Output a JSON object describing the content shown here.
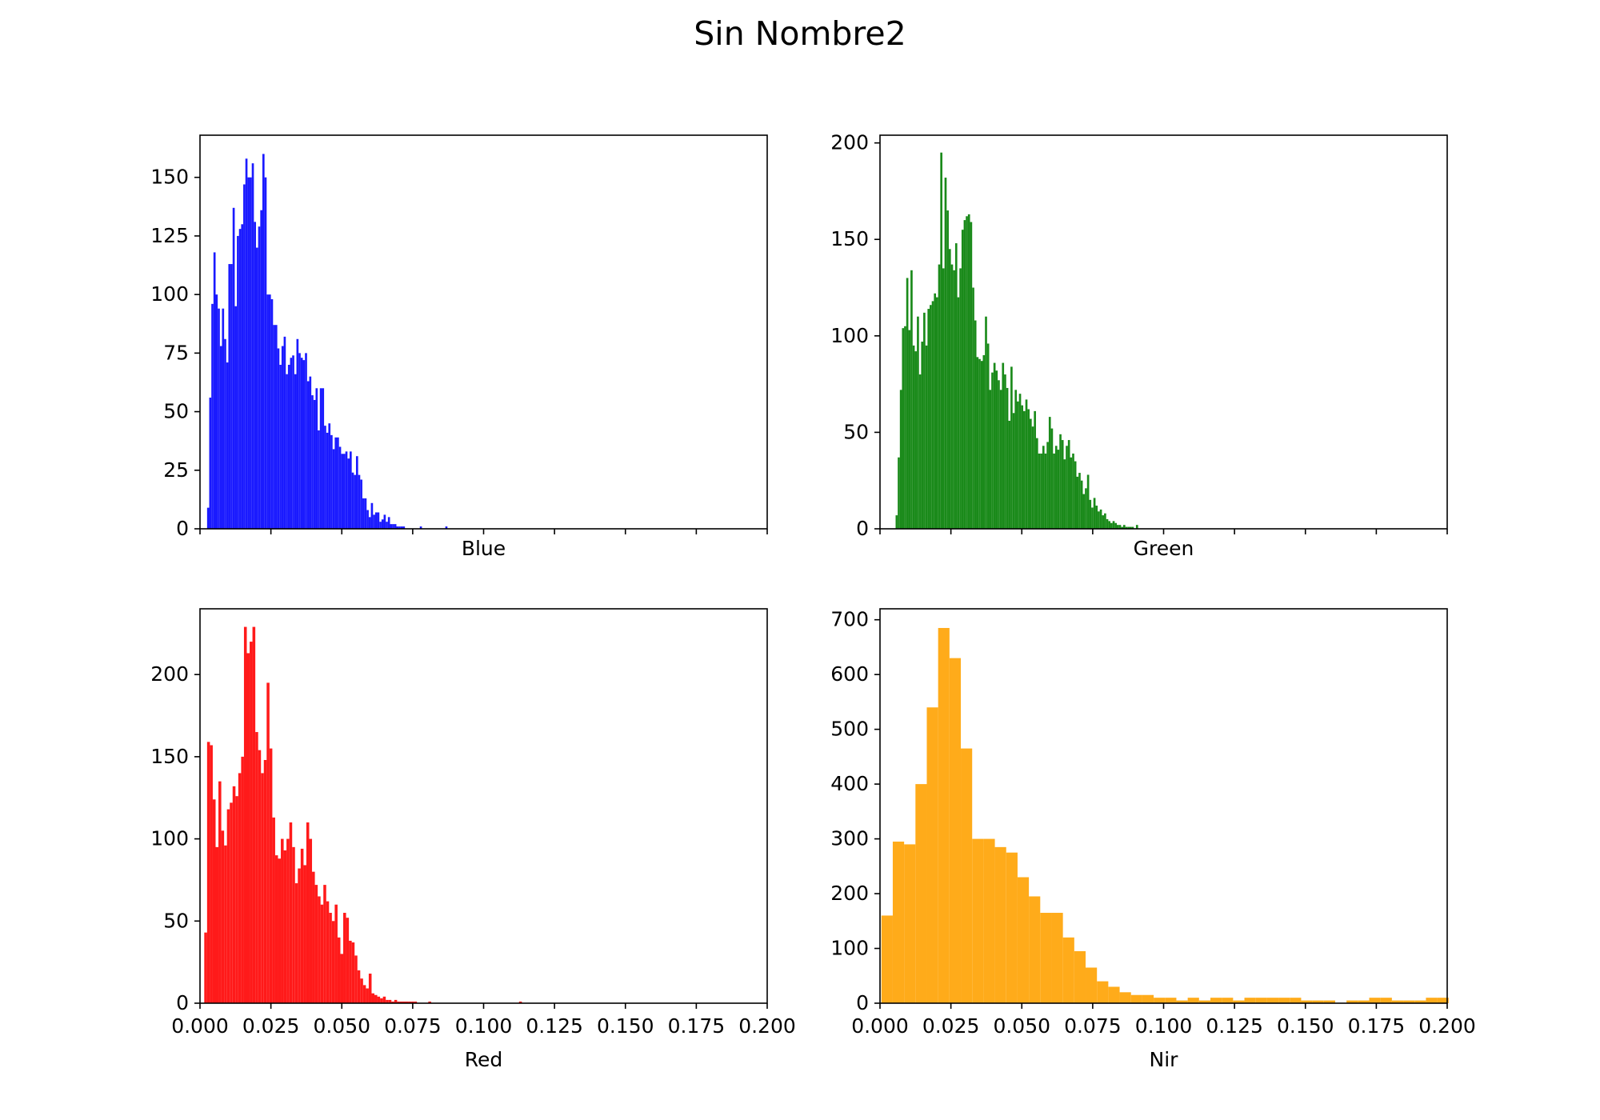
{
  "figure_title": "Sin Nombre2",
  "chart_data": [
    {
      "type": "bar",
      "variant": "histogram",
      "title": "",
      "xlabel": "Blue",
      "ylabel": "",
      "xlim": [
        0,
        0.2
      ],
      "ylim": [
        0,
        168
      ],
      "x_ticks": [
        0,
        0.025,
        0.05,
        0.075,
        0.1,
        0.125,
        0.15,
        0.175,
        0.2
      ],
      "x_tick_labels_visible": false,
      "y_ticks": [
        0,
        25,
        50,
        75,
        100,
        125,
        150
      ],
      "y_tick_labels": [
        "0",
        "25",
        "50",
        "75",
        "100",
        "125",
        "150"
      ],
      "color": "#1a1aff",
      "series": [
        {
          "bin_edges": [
            0.0025,
            0.00325,
            0.004,
            0.00475,
            0.0055,
            0.00625,
            0.007,
            0.00775,
            0.0085,
            0.00925,
            0.01,
            0.01075,
            0.0115,
            0.01225,
            0.013,
            0.01375,
            0.0145,
            0.01525,
            0.016,
            0.01675,
            0.0175,
            0.01825,
            0.019,
            0.01975,
            0.0205,
            0.02125,
            0.022,
            0.02275,
            0.0235,
            0.02425,
            0.025,
            0.02575,
            0.0265,
            0.02725,
            0.028,
            0.02875,
            0.0295,
            0.03025,
            0.031,
            0.03175,
            0.0325,
            0.03325,
            0.034,
            0.03475,
            0.0355,
            0.03625,
            0.037,
            0.03775,
            0.0385,
            0.03925,
            0.04,
            0.04075,
            0.0415,
            0.04225,
            0.043,
            0.04375,
            0.0445,
            0.04525,
            0.046,
            0.04675,
            0.0475,
            0.04825,
            0.049,
            0.04975,
            0.0505,
            0.05125,
            0.052,
            0.05275,
            0.0535,
            0.05425,
            0.055,
            0.05575,
            0.0565,
            0.05725,
            0.058,
            0.05875,
            0.0595,
            0.06025,
            0.061,
            0.06175,
            0.0625,
            0.06325,
            0.064,
            0.06475,
            0.0655,
            0.06625,
            0.067,
            0.06775,
            0.0685,
            0.06925,
            0.07,
            0.07075,
            0.0715,
            0.07225,
            0.073,
            0.07375,
            0.0745,
            0.07525,
            0.076,
            0.07675,
            0.0775,
            0.07825,
            0.079,
            0.07975,
            0.0805,
            0.08125,
            0.082,
            0.08275,
            0.0835,
            0.08425,
            0.085,
            0.08575,
            0.0865,
            0.08725,
            0.088,
            0.08875,
            0.0895,
            0.09025,
            0.091,
            0.09175,
            0.0925
          ],
          "counts": [
            9,
            56,
            96,
            118,
            100,
            94,
            78,
            94,
            81,
            71,
            113,
            113,
            137,
            95,
            125,
            128,
            130,
            147,
            158,
            150,
            150,
            156,
            131,
            120,
            129,
            136,
            160,
            150,
            100,
            100,
            98,
            87,
            87,
            77,
            70,
            78,
            82,
            66,
            70,
            73,
            74,
            66,
            81,
            75,
            73,
            72,
            75,
            63,
            65,
            57,
            55,
            60,
            42,
            60,
            60,
            44,
            41,
            45,
            40,
            34,
            39,
            39,
            35,
            32,
            32,
            33,
            30,
            33,
            24,
            23,
            31,
            23,
            21,
            13,
            13,
            8,
            5,
            11,
            6,
            7,
            7,
            3,
            4,
            6,
            3,
            5,
            2,
            2,
            2,
            1,
            1,
            1,
            1,
            0,
            0,
            0,
            0,
            0,
            0,
            0,
            1,
            0,
            0,
            0,
            0,
            0,
            0,
            0,
            0,
            0,
            0,
            0,
            1,
            0,
            0,
            0,
            0,
            0,
            0,
            0
          ]
        }
      ]
    },
    {
      "type": "bar",
      "variant": "histogram",
      "title": "",
      "xlabel": "Green",
      "ylabel": "",
      "xlim": [
        0,
        0.2
      ],
      "ylim": [
        0,
        204
      ],
      "x_ticks": [
        0,
        0.025,
        0.05,
        0.075,
        0.1,
        0.125,
        0.15,
        0.175,
        0.2
      ],
      "x_tick_labels_visible": false,
      "y_ticks": [
        0,
        50,
        100,
        150,
        200
      ],
      "y_tick_labels": [
        "0",
        "50",
        "100",
        "150",
        "200"
      ],
      "color": "#1a8a1a",
      "series": [
        {
          "bin_edges": [
            0.0055,
            0.00625,
            0.007,
            0.00775,
            0.0085,
            0.00925,
            0.01,
            0.01075,
            0.0115,
            0.01225,
            0.013,
            0.01375,
            0.0145,
            0.01525,
            0.016,
            0.01675,
            0.0175,
            0.01825,
            0.019,
            0.01975,
            0.0205,
            0.02125,
            0.022,
            0.02275,
            0.0235,
            0.02425,
            0.025,
            0.02575,
            0.0265,
            0.02725,
            0.028,
            0.02875,
            0.0295,
            0.03025,
            0.031,
            0.03175,
            0.0325,
            0.03325,
            0.034,
            0.03475,
            0.0355,
            0.03625,
            0.037,
            0.03775,
            0.0385,
            0.03925,
            0.04,
            0.04075,
            0.0415,
            0.04225,
            0.043,
            0.04375,
            0.0445,
            0.04525,
            0.046,
            0.04675,
            0.0475,
            0.04825,
            0.049,
            0.04975,
            0.0505,
            0.05125,
            0.052,
            0.05275,
            0.0535,
            0.05425,
            0.055,
            0.05575,
            0.0565,
            0.05725,
            0.058,
            0.05875,
            0.0595,
            0.06025,
            0.061,
            0.06175,
            0.0625,
            0.06325,
            0.064,
            0.06475,
            0.0655,
            0.06625,
            0.067,
            0.06775,
            0.0685,
            0.06925,
            0.07,
            0.07075,
            0.0715,
            0.07225,
            0.073,
            0.07375,
            0.0745,
            0.07525,
            0.076,
            0.07675,
            0.0775,
            0.07825,
            0.079,
            0.07975,
            0.0805,
            0.08125,
            0.082,
            0.08275,
            0.0835,
            0.08425,
            0.085,
            0.08575,
            0.0865,
            0.08725,
            0.088,
            0.08875,
            0.0895,
            0.09025,
            0.091,
            0.09175,
            0.0925,
            0.09325,
            0.094,
            0.09475,
            0.0955
          ],
          "counts": [
            7,
            37,
            72,
            104,
            105,
            130,
            103,
            134,
            95,
            92,
            110,
            80,
            97,
            112,
            95,
            114,
            116,
            118,
            122,
            120,
            137,
            195,
            135,
            182,
            165,
            145,
            137,
            134,
            148,
            120,
            135,
            155,
            160,
            162,
            163,
            159,
            125,
            108,
            89,
            88,
            87,
            90,
            110,
            96,
            72,
            81,
            86,
            82,
            77,
            72,
            86,
            80,
            73,
            56,
            84,
            60,
            72,
            66,
            70,
            64,
            61,
            67,
            62,
            57,
            53,
            61,
            47,
            39,
            39,
            43,
            39,
            45,
            58,
            52,
            39,
            43,
            41,
            49,
            46,
            36,
            43,
            46,
            37,
            39,
            35,
            27,
            29,
            25,
            18,
            21,
            28,
            15,
            11,
            16,
            12,
            9,
            10,
            7,
            8,
            5,
            4,
            3,
            4,
            3,
            2,
            2,
            1,
            2,
            1,
            1,
            1,
            1,
            0,
            2,
            0,
            0,
            0,
            0,
            0,
            0,
            1
          ]
        }
      ]
    },
    {
      "type": "bar",
      "variant": "histogram",
      "title": "",
      "xlabel": "Red",
      "ylabel": "",
      "xlim": [
        0,
        0.2
      ],
      "ylim": [
        0,
        240
      ],
      "x_ticks": [
        0,
        0.025,
        0.05,
        0.075,
        0.1,
        0.125,
        0.15,
        0.175,
        0.2
      ],
      "x_tick_labels": [
        "0.000",
        "0.025",
        "0.050",
        "0.075",
        "0.100",
        "0.125",
        "0.150",
        "0.175",
        "0.200"
      ],
      "x_tick_labels_visible": true,
      "y_ticks": [
        0,
        50,
        100,
        150,
        200
      ],
      "y_tick_labels": [
        "0",
        "50",
        "100",
        "150",
        "200"
      ],
      "color": "#ff1a1a",
      "series": [
        {
          "bin_edges": [
            0.0015,
            0.0025,
            0.0035,
            0.0045,
            0.0055,
            0.0065,
            0.0075,
            0.0085,
            0.0095,
            0.0105,
            0.0115,
            0.0125,
            0.0135,
            0.0145,
            0.0155,
            0.0165,
            0.0175,
            0.0185,
            0.0195,
            0.0205,
            0.0215,
            0.0225,
            0.0235,
            0.0245,
            0.0255,
            0.0265,
            0.0275,
            0.0285,
            0.0295,
            0.0305,
            0.0315,
            0.0325,
            0.0335,
            0.0345,
            0.0355,
            0.0365,
            0.0375,
            0.0385,
            0.0395,
            0.0405,
            0.0415,
            0.0425,
            0.0435,
            0.0445,
            0.0455,
            0.0465,
            0.0475,
            0.0485,
            0.0495,
            0.0505,
            0.0515,
            0.0525,
            0.0535,
            0.0545,
            0.0555,
            0.0565,
            0.0575,
            0.0585,
            0.0595,
            0.0605,
            0.0615,
            0.0625,
            0.0635,
            0.0645,
            0.0655,
            0.0665,
            0.0675,
            0.0685,
            0.0695,
            0.0705,
            0.0715,
            0.0725,
            0.0735,
            0.0745,
            0.0755,
            0.0765,
            0.0775,
            0.0785,
            0.0795,
            0.0805,
            0.0815,
            0.0825,
            0.0835,
            0.0845,
            0.0855,
            0.0865,
            0.0875,
            0.0885,
            0.0895,
            0.0905,
            0.0915,
            0.0925,
            0.0935,
            0.0945,
            0.0955,
            0.0965,
            0.0975,
            0.0985,
            0.0995,
            0.1005,
            0.1015,
            0.1025,
            0.1035,
            0.1045,
            0.1055,
            0.1065,
            0.1075,
            0.1085,
            0.1095,
            0.1105,
            0.1115,
            0.1125,
            0.1135,
            0.1145,
            0.1155,
            0.1165,
            0.1175,
            0.1185,
            0.1195,
            0.1205,
            0.1215
          ],
          "counts": [
            43,
            159,
            157,
            124,
            95,
            135,
            105,
            96,
            118,
            122,
            132,
            126,
            140,
            150,
            229,
            213,
            220,
            229,
            165,
            154,
            140,
            148,
            195,
            155,
            113,
            90,
            88,
            100,
            93,
            100,
            110,
            95,
            73,
            82,
            94,
            84,
            110,
            100,
            80,
            72,
            65,
            60,
            72,
            62,
            55,
            50,
            60,
            40,
            30,
            55,
            52,
            38,
            37,
            29,
            20,
            15,
            11,
            9,
            18,
            6,
            5,
            4,
            3,
            4,
            2,
            2,
            1,
            2,
            1,
            1,
            1,
            1,
            1,
            1,
            1,
            0,
            0,
            0,
            0,
            1,
            0,
            0,
            0,
            0,
            0,
            0,
            0,
            0,
            0,
            0,
            0,
            0,
            0,
            0,
            0,
            0,
            0,
            0,
            0,
            0,
            0,
            0,
            0,
            0,
            0,
            0,
            0,
            0,
            0,
            0,
            0,
            1,
            0,
            0,
            0,
            0,
            0,
            0,
            0,
            0
          ]
        }
      ]
    },
    {
      "type": "bar",
      "variant": "histogram",
      "title": "",
      "xlabel": "Nir",
      "ylabel": "",
      "xlim": [
        0,
        0.2
      ],
      "ylim": [
        0,
        720
      ],
      "x_ticks": [
        0,
        0.025,
        0.05,
        0.075,
        0.1,
        0.125,
        0.15,
        0.175,
        0.2
      ],
      "x_tick_labels": [
        "0.000",
        "0.025",
        "0.050",
        "0.075",
        "0.100",
        "0.125",
        "0.150",
        "0.175",
        "0.200"
      ],
      "x_tick_labels_visible": true,
      "y_ticks": [
        0,
        100,
        200,
        300,
        400,
        500,
        600,
        700
      ],
      "y_tick_labels": [
        "0",
        "100",
        "200",
        "300",
        "400",
        "500",
        "600",
        "700"
      ],
      "color": "#ffab1a",
      "series": [
        {
          "bin_edges": [
            0.0005,
            0.0045,
            0.0085,
            0.0125,
            0.0165,
            0.0205,
            0.0245,
            0.0285,
            0.0325,
            0.0365,
            0.0405,
            0.0445,
            0.0485,
            0.0525,
            0.0565,
            0.0605,
            0.0645,
            0.0685,
            0.0725,
            0.0765,
            0.0805,
            0.0845,
            0.0885,
            0.0925,
            0.0965,
            0.1005,
            0.1045,
            0.1085,
            0.1125,
            0.1165,
            0.1205,
            0.1245,
            0.1285,
            0.1325,
            0.1365,
            0.1405,
            0.1445,
            0.1485,
            0.1525,
            0.1565,
            0.1605,
            0.1645,
            0.1685,
            0.1725,
            0.1765,
            0.1805,
            0.1845,
            0.1885,
            0.1925,
            0.1965,
            0.2005
          ],
          "counts": [
            160,
            295,
            290,
            400,
            540,
            685,
            630,
            465,
            300,
            300,
            285,
            275,
            230,
            195,
            165,
            165,
            120,
            95,
            65,
            40,
            30,
            20,
            15,
            15,
            10,
            10,
            5,
            10,
            5,
            10,
            10,
            5,
            10,
            10,
            10,
            10,
            10,
            5,
            5,
            5,
            0,
            5,
            5,
            10,
            10,
            5,
            5,
            5,
            10,
            10
          ]
        }
      ]
    }
  ]
}
